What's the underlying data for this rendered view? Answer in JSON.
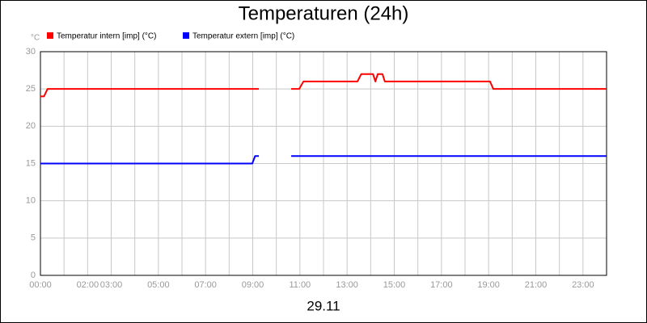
{
  "chart_data": {
    "type": "line",
    "title": "Temperaturen (24h)",
    "y_label": "°C",
    "x_label": "29.11",
    "xlim": [
      0,
      24
    ],
    "ylim": [
      0,
      30
    ],
    "yticks": [
      0,
      5,
      10,
      15,
      20,
      25,
      30
    ],
    "xticks": [
      {
        "value": 0,
        "label": "00:00"
      },
      {
        "value": 2,
        "label": "02:00"
      },
      {
        "value": 3,
        "label": "03:00"
      },
      {
        "value": 5,
        "label": "05:00"
      },
      {
        "value": 7,
        "label": "07:00"
      },
      {
        "value": 9,
        "label": "09:00"
      },
      {
        "value": 11,
        "label": "11:00"
      },
      {
        "value": 13,
        "label": "13:00"
      },
      {
        "value": 15,
        "label": "15:00"
      },
      {
        "value": 17,
        "label": "17:00"
      },
      {
        "value": 19,
        "label": "19:00"
      },
      {
        "value": 21,
        "label": "21:00"
      },
      {
        "value": 23,
        "label": "23:00"
      }
    ],
    "xminor": [
      1,
      4,
      6,
      8,
      10,
      12,
      14,
      16,
      18,
      20,
      22,
      24
    ],
    "grid": true,
    "series": [
      {
        "name": "Temperatur intern [imp] (°C)",
        "color": "#ff0000",
        "x": [
          0,
          0.15,
          0.3,
          9.26,
          9.9,
          10.63,
          10.97,
          11.15,
          13.44,
          13.6,
          14.1,
          14.2,
          14.3,
          14.5,
          14.6,
          19.06,
          19.2,
          24
        ],
        "values": [
          24,
          24,
          25,
          25,
          null,
          25,
          25,
          26,
          26,
          27,
          27,
          26,
          27,
          27,
          26,
          26,
          25,
          25
        ]
      },
      {
        "name": "Temperatur extern [imp] (°C)",
        "color": "#0000ff",
        "x": [
          0,
          8.98,
          9.1,
          9.26,
          9.9,
          10.63,
          24
        ],
        "values": [
          15,
          15,
          16,
          16,
          null,
          16,
          16
        ]
      }
    ]
  }
}
